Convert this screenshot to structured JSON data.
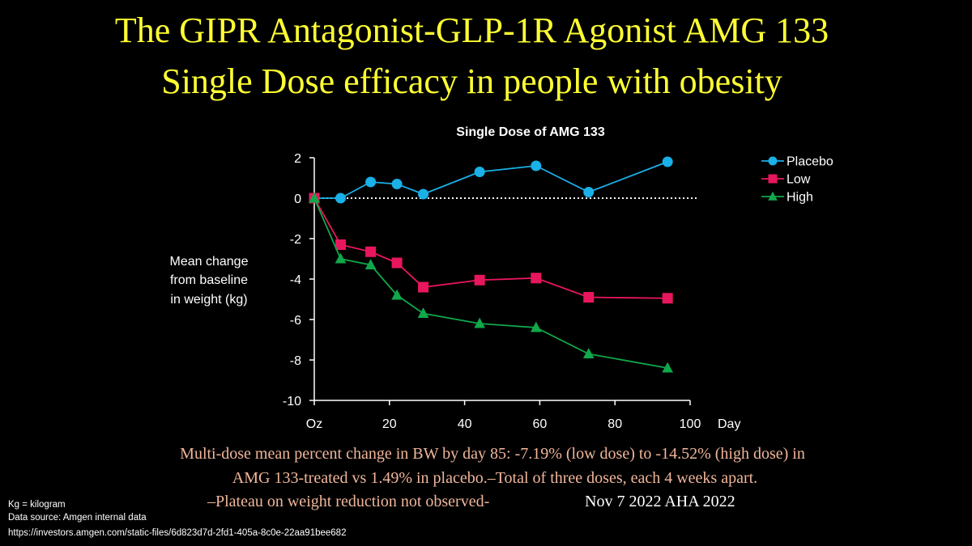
{
  "title": {
    "line1": "The GIPR Antagonist-GLP-1R Agonist AMG 133",
    "line2": "Single Dose efficacy in people with obesity"
  },
  "chart_data": {
    "type": "line",
    "title": "Single Dose of AMG 133",
    "ylabel_lines": [
      "Mean change",
      "from baseline",
      "in weight (kg)"
    ],
    "xlabel": "Day",
    "xlim": [
      0,
      100
    ],
    "ylim": [
      -10,
      2
    ],
    "x_ticks": [
      0,
      20,
      40,
      60,
      80,
      100
    ],
    "x_tick_labels": [
      "Oz",
      "20",
      "40",
      "60",
      "80",
      "100"
    ],
    "y_ticks": [
      2,
      0,
      -2,
      -4,
      -6,
      -8,
      -10
    ],
    "y_tick_labels": [
      "2",
      "0",
      "-2",
      "-4",
      "-6",
      "-8",
      "-10"
    ],
    "reference_line": {
      "y": 0,
      "style": "dotted"
    },
    "legend_position": "top-right",
    "series": [
      {
        "name": "Placebo",
        "marker": "circle",
        "color": "#1ab0e8",
        "x": [
          0,
          7,
          15,
          22,
          29,
          44,
          59,
          73,
          94
        ],
        "values": [
          0,
          0,
          0.8,
          0.7,
          0.2,
          1.3,
          1.6,
          0.3,
          1.8
        ]
      },
      {
        "name": "Low",
        "marker": "square",
        "color": "#e8175d",
        "x": [
          0,
          7,
          15,
          22,
          29,
          44,
          59,
          73,
          94
        ],
        "values": [
          0,
          -2.3,
          -2.65,
          -3.2,
          -4.4,
          -4.05,
          -3.95,
          -4.9,
          -4.95
        ]
      },
      {
        "name": "High",
        "marker": "triangle",
        "color": "#10a84a",
        "x": [
          0,
          7,
          15,
          22,
          29,
          44,
          59,
          73,
          94
        ],
        "values": [
          0,
          -3.0,
          -3.3,
          -4.8,
          -5.7,
          -6.2,
          -6.4,
          -7.7,
          -8.4
        ]
      }
    ]
  },
  "notes": {
    "line1": "Multi-dose mean percent change in BW by day 85: -7.19% (low dose) to -14.52% (high dose) in",
    "line2": "AMG 133-treated vs 1.49% in placebo.–Total of three doses, each 4 weeks apart.",
    "line3": "–Plateau on weight reduction not observed-",
    "date": "Nov 7 2022 AHA 2022"
  },
  "footnotes": {
    "kg": "Kg = kilogram",
    "source": "Data source: Amgen internal data",
    "url": "https://investors.amgen.com/static-files/6d823d7d-2fd1-405a-8c0e-22aa91bee682"
  }
}
